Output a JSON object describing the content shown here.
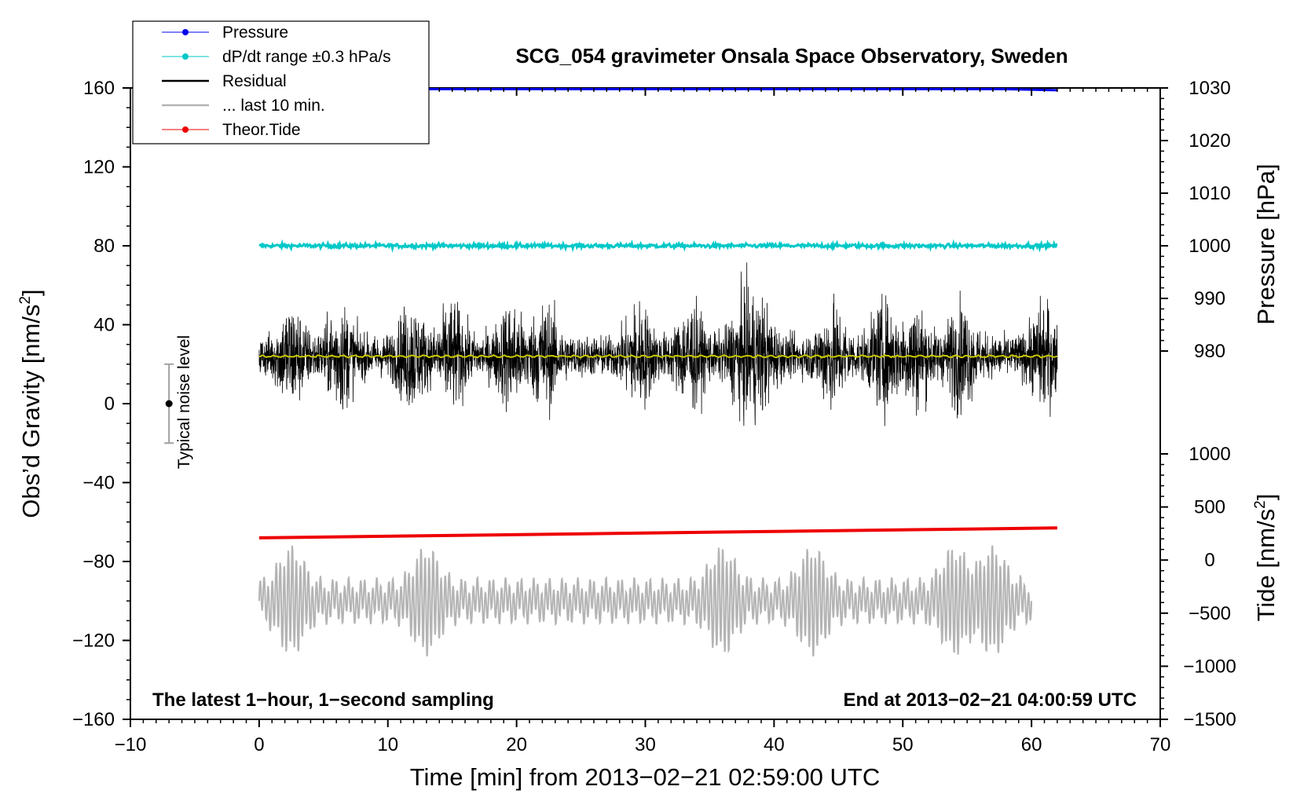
{
  "chart_data": {
    "type": "line",
    "title": "SCG_054 gravimeter Onsala Space Observatory, Sweden",
    "xlabel": "Time [min] from 2013−02−21 02:59:00 UTC",
    "ylabel_left": "Obs’d Gravity [nm/s",
    "ylabel_left_sup": "2",
    "ylabel_left_end": "]",
    "ylabel_right_pressure": "Pressure [hPa]",
    "ylabel_right_tide": "Tide [nm/s",
    "ylabel_right_tide_sup": "2",
    "ylabel_right_tide_end": "]",
    "xlim": [
      -10,
      70
    ],
    "ylim_left": [
      -160,
      160
    ],
    "pressure_range": [
      980,
      1030
    ],
    "tide_range": [
      -1500,
      1000
    ],
    "xticks": [
      -10,
      0,
      10,
      20,
      30,
      40,
      50,
      60,
      70
    ],
    "xtick_labels": [
      "−10",
      "0",
      "10",
      "20",
      "30",
      "40",
      "50",
      "60",
      "70"
    ],
    "yticks_left": [
      160,
      120,
      80,
      40,
      0,
      -40,
      -80,
      -120,
      -160
    ],
    "ytick_labels_left": [
      "160",
      "120",
      "80",
      "40",
      "0",
      "−40",
      "−80",
      "−120",
      "−160"
    ],
    "yticks_pressure": [
      1030,
      1020,
      1010,
      1000,
      990,
      980
    ],
    "ytick_labels_pressure": [
      "1030",
      "1020",
      "1010",
      "1000",
      "990",
      "980"
    ],
    "yticks_tide": [
      1000,
      500,
      0,
      -500,
      -1000,
      -1500
    ],
    "ytick_labels_tide": [
      "1000",
      "500",
      "0",
      "−500",
      "−1000",
      "−1500"
    ],
    "legend": [
      {
        "label": "Pressure",
        "color": "#0000ee",
        "style": "line-dot"
      },
      {
        "label": "dP/dt range ±0.3 hPa/s",
        "color": "#00c8c8",
        "style": "line-dot"
      },
      {
        "label": "Residual",
        "color": "#000000",
        "style": "line"
      },
      {
        "label": "... last 10 min.",
        "color": "#b4b4b4",
        "style": "line"
      },
      {
        "label": "Theor.Tide",
        "color": "#ee0000",
        "style": "line-dot"
      }
    ],
    "series": [
      {
        "name": "Pressure",
        "axis": "pressure",
        "color": "#0000ee",
        "x": [
          0,
          58,
          62
        ],
        "values": [
          1030,
          1030,
          1029.8
        ]
      },
      {
        "name": "dP/dt range ±0.3 hPa/s",
        "axis": "left",
        "color": "#00c8c8",
        "x": [
          0,
          62
        ],
        "values": [
          80,
          80
        ],
        "spread": 1.5
      },
      {
        "name": "Residual",
        "axis": "left",
        "color": "#000000",
        "x": [
          0,
          62
        ],
        "center": 24,
        "min": -25,
        "max": 73
      },
      {
        "name": "Residual mean",
        "axis": "left",
        "color": "#c8c800",
        "x": [
          0,
          62
        ],
        "values": [
          24,
          24
        ]
      },
      {
        "name": "Theor.Tide",
        "axis": "left",
        "color": "#ee0000",
        "x": [
          0,
          62
        ],
        "values": [
          -68,
          -63
        ]
      },
      {
        "name": "... last 10 min.",
        "axis": "left",
        "color": "#b4b4b4",
        "x": [
          0,
          60
        ],
        "center": -100,
        "min": -133,
        "max": -64
      }
    ],
    "noise_level": {
      "label": "Typical noise level",
      "x": -7,
      "y": 0,
      "low": -20,
      "high": 20
    },
    "note_left": "The latest 1−hour, 1−second sampling",
    "note_right": "End at 2013−02−21 04:00:59 UTC"
  },
  "colors": {
    "pressure": "#0000ee",
    "dpdt": "#00c8c8",
    "residual": "#000000",
    "residual_mean": "#c8c800",
    "last10": "#b4b4b4",
    "tide": "#ee0000",
    "noise_bar": "#a0a0a0"
  }
}
